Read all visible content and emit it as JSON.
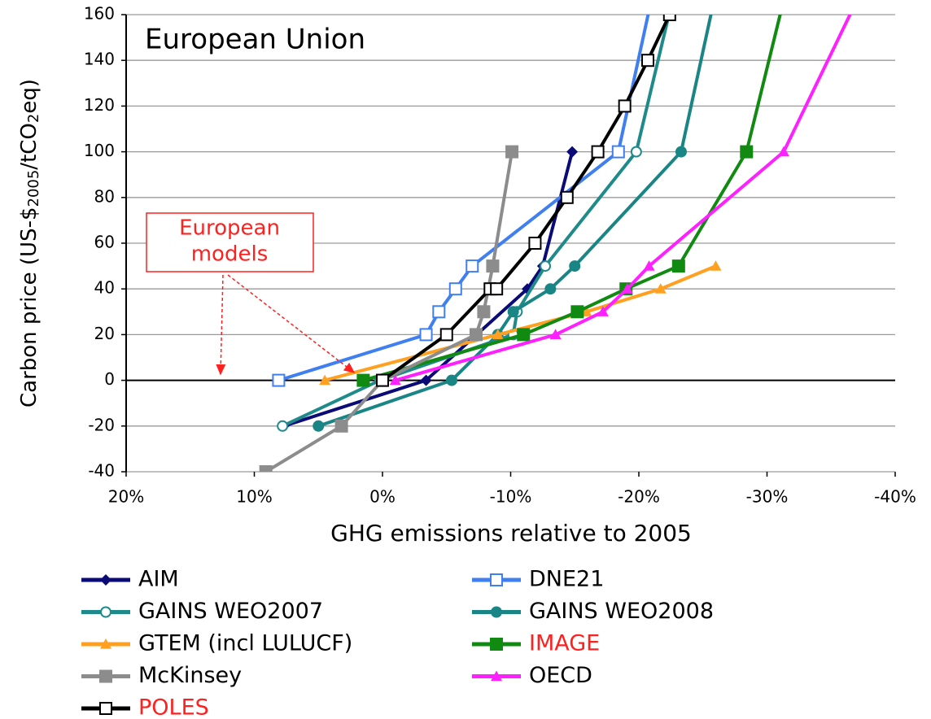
{
  "chart_data": {
    "type": "line",
    "title": "European Union",
    "xlabel": "GHG emissions relative to 2005",
    "ylabel_parts": [
      "Carbon price (US-$",
      "2005",
      "/tCO",
      "2",
      "eq)"
    ],
    "annotation": [
      "European",
      "models"
    ],
    "xlim": [
      20,
      -40
    ],
    "xticks": [
      {
        "value": 20,
        "label": "20%"
      },
      {
        "value": 10,
        "label": "10%"
      },
      {
        "value": 0,
        "label": "0%"
      },
      {
        "value": -10,
        "label": "-10%"
      },
      {
        "value": -20,
        "label": "-20%"
      },
      {
        "value": -30,
        "label": "-30%"
      },
      {
        "value": -40,
        "label": "-40%"
      }
    ],
    "ylim": [
      -40,
      160
    ],
    "yticks": [
      -40,
      -20,
      0,
      20,
      40,
      60,
      80,
      100,
      120,
      140,
      160
    ],
    "grid": true,
    "legend": "bottom",
    "series": [
      {
        "name": "AIM",
        "color": "#0b0b78",
        "marker": "diamond",
        "x": [
          7.7,
          -3.4,
          -11.3,
          -12.5,
          -14.8
        ],
        "values": [
          -20,
          0,
          40,
          50,
          100
        ]
      },
      {
        "name": "DNE21",
        "color": "#3f7ff0",
        "marker": "open-square",
        "x": [
          8.1,
          -3.4,
          -4.4,
          -5.7,
          -7.0,
          -18.4,
          -21.5
        ],
        "values": [
          0,
          20,
          30,
          40,
          50,
          100,
          180
        ]
      },
      {
        "name": "GAINS WEO2007",
        "color": "#1f8a8a",
        "marker": "open-circle",
        "x": [
          7.8,
          0.2,
          -10.2,
          -10.5,
          -12.7,
          -19.8,
          -23.2
        ],
        "values": [
          -20,
          0,
          20,
          30,
          50,
          100,
          180
        ]
      },
      {
        "name": "GAINS WEO2008",
        "color": "#1a8585",
        "marker": "circle",
        "x": [
          5.0,
          -5.4,
          -9.0,
          -10.2,
          -13.1,
          -15.0,
          -23.3,
          -26.4
        ],
        "values": [
          -20,
          0,
          20,
          30,
          40,
          50,
          100,
          180
        ]
      },
      {
        "name": "GTEM (incl LULUCF)",
        "color": "#ffa020",
        "marker": "triangle",
        "x": [
          4.5,
          -9.0,
          -15.9,
          -21.7,
          -26.0
        ],
        "values": [
          0,
          20,
          30,
          40,
          50
        ]
      },
      {
        "name": "IMAGE",
        "color": "#118a11",
        "marker": "square",
        "label_color": "#ff2020",
        "x": [
          1.5,
          -11.0,
          -15.2,
          -19.0,
          -23.1,
          -28.4,
          -31.9
        ],
        "values": [
          0,
          20,
          30,
          40,
          50,
          100,
          180
        ]
      },
      {
        "name": "McKinsey",
        "color": "#8c8c8c",
        "marker": "square",
        "x": [
          9.1,
          3.2,
          0,
          -7.3,
          -7.9,
          -8.6,
          -10.1
        ],
        "values": [
          -40,
          -20,
          0,
          20,
          30,
          50,
          100
        ]
      },
      {
        "name": "OECD",
        "color": "#ff20ff",
        "marker": "triangle",
        "x": [
          -1.0,
          -13.5,
          -17.2,
          -19.1,
          -20.8,
          -31.3,
          -38.2
        ],
        "values": [
          0,
          20,
          30,
          40,
          50,
          100,
          180
        ]
      },
      {
        "name": "POLES",
        "color": "#000000",
        "marker": "open-square",
        "label_color": "#ff2020",
        "x": [
          0,
          -5.0,
          -8.4,
          -8.9,
          -11.9,
          -14.4,
          -16.8,
          -18.9,
          -20.7,
          -22.4
        ],
        "values": [
          0,
          20,
          40,
          40,
          60,
          80,
          100,
          120,
          140,
          160
        ]
      }
    ]
  }
}
